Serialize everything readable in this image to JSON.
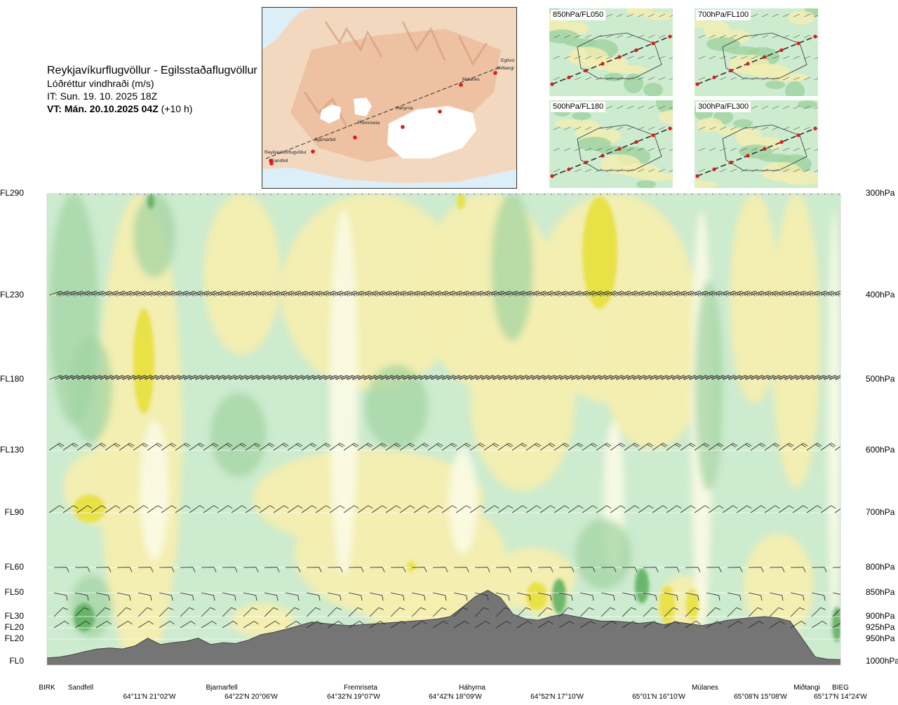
{
  "header": {
    "route": "Reykjavíkurflugvöllur - Egilsstaðaflugvöllur",
    "quantity": "Lóðréttur vindhraði (m/s)",
    "issue_time": "IT: Sun. 19. 10. 2025 18Z",
    "valid_time_bold": "VT: Mán. 20.10.2025 04Z",
    "valid_time_offset": "(+10 h)"
  },
  "map": {
    "labels": [
      "Reykjavíkurflugvöllur",
      "Sandfell",
      "Bjarnarfell",
      "Fremriseta",
      "Háhyrna",
      "Múlanes",
      "Egilsst",
      "Miðtangi"
    ]
  },
  "thumbnails": [
    {
      "label": "850hPa/FL050"
    },
    {
      "label": "700hPa/FL100"
    },
    {
      "label": "500hPa/FL180"
    },
    {
      "label": "300hPa/FL300"
    }
  ],
  "colors": {
    "terrain": "#757575",
    "light_green": "#cdebcf",
    "mid_green": "#9fd39f",
    "dark_green": "#5fb063",
    "pale_yellow": "#f4eeb0",
    "yellow": "#e8e040",
    "near_zero": "#fbfbe6"
  },
  "chart_data": {
    "type": "heatmap",
    "title": "Reykjavíkurflugvöllur - Egilsstaðaflugvöllur",
    "subtitle": "Lóðréttur vindhraði (m/s)",
    "flight_levels_left": [
      "FL290",
      "FL230",
      "FL180",
      "FL130",
      "FL90",
      "FL60",
      "FL50",
      "FL30",
      "FL20",
      "FL20",
      "FL0"
    ],
    "pressure_levels_right": [
      "300hPa",
      "400hPa",
      "500hPa",
      "600hPa",
      "700hPa",
      "800hPa",
      "850hPa",
      "900hPa",
      "925hPa",
      "950hPa",
      "1000hPa"
    ],
    "pressure_values_hpa": [
      300,
      400,
      500,
      600,
      700,
      800,
      850,
      900,
      925,
      950,
      1000
    ],
    "locations": [
      "BIRK",
      "Sandfell",
      "Bjarnarfell",
      "Fremriseta",
      "Háhyrna",
      "Múlanes",
      "Miðtangi",
      "BIEG"
    ],
    "coordinates": [
      "64°11'N 21°02'W",
      "64°22'N 20°06'W",
      "64°32'N 19°07'W",
      "64°42'N 18°09'W",
      "64°52'N 17°10'W",
      "65°01'N 16°10'W",
      "65°08'N 15°08'W",
      "65°17'N 14°24'W"
    ],
    "terrain_profile_hpa": [
      992,
      990,
      985,
      978,
      972,
      970,
      972,
      965,
      948,
      962,
      958,
      955,
      948,
      962,
      958,
      960,
      952,
      940,
      935,
      928,
      920,
      912,
      915,
      918,
      920,
      918,
      916,
      914,
      912,
      910,
      908,
      905,
      900,
      880,
      858,
      845,
      860,
      895,
      905,
      908,
      900,
      895,
      900,
      905,
      910,
      910,
      912,
      915,
      912,
      918,
      912,
      916,
      920,
      915,
      908,
      905,
      902,
      900,
      903,
      910,
      950,
      990,
      995,
      996
    ],
    "field_values_ms": [],
    "grid": false,
    "legend": "none"
  }
}
